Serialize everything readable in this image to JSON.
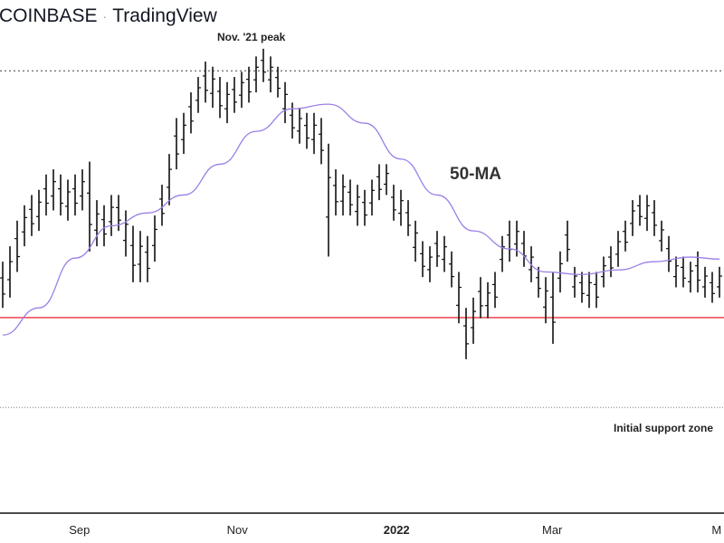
{
  "header": {
    "symbol": "COINBASE",
    "separator": "·",
    "source": "TradingView"
  },
  "annotations": {
    "peak": "Nov. '21 peak",
    "ma": "50-MA",
    "support": "Initial support zone"
  },
  "colors": {
    "bars": "#111111",
    "ma": "#9b7fe6",
    "support_line": "#f0505a",
    "dotted": "#444444"
  },
  "chart_data": {
    "type": "ohlc",
    "ylabel": "",
    "xlabel": "",
    "ylim": [
      0,
      100
    ],
    "levels": {
      "peak_level": 86.2,
      "support_line": 38.1,
      "lower_level": 20.6
    },
    "x_ticks": [
      {
        "label": "Sep",
        "at": 10.6,
        "bold": false
      },
      {
        "label": "Nov",
        "at": 32.4,
        "bold": false
      },
      {
        "label": "2022",
        "at": 54.4,
        "bold": true
      },
      {
        "label": "Mar",
        "at": 75.9,
        "bold": false
      },
      {
        "label": "M",
        "at": 98.6,
        "bold": false
      }
    ],
    "bars_high_low": [
      [
        49,
        40
      ],
      [
        52,
        42
      ],
      [
        57,
        47
      ],
      [
        60,
        52
      ],
      [
        62,
        54
      ],
      [
        63,
        55
      ],
      [
        66,
        58
      ],
      [
        67,
        59
      ],
      [
        66,
        58
      ],
      [
        65,
        57
      ],
      [
        66,
        58
      ],
      [
        67,
        59
      ],
      [
        68.5,
        51
      ],
      [
        61,
        52
      ],
      [
        60,
        52
      ],
      [
        62,
        54
      ],
      [
        62,
        55
      ],
      [
        59,
        50
      ],
      [
        56,
        45
      ],
      [
        55,
        45
      ],
      [
        54,
        45
      ],
      [
        58,
        49
      ],
      [
        64,
        56
      ],
      [
        70,
        60
      ],
      [
        77,
        67
      ],
      [
        78,
        70
      ],
      [
        82,
        74
      ],
      [
        85,
        78
      ],
      [
        88,
        80
      ],
      [
        87,
        79
      ],
      [
        85,
        77
      ],
      [
        84,
        76
      ],
      [
        85,
        78
      ],
      [
        86,
        79
      ],
      [
        87,
        80
      ],
      [
        89,
        82
      ],
      [
        90.5,
        84
      ],
      [
        89,
        82
      ],
      [
        87,
        81
      ],
      [
        84,
        76
      ],
      [
        80,
        73
      ],
      [
        79,
        72
      ],
      [
        78,
        71
      ],
      [
        78,
        70
      ],
      [
        77,
        68
      ],
      [
        72,
        50
      ],
      [
        67,
        58
      ],
      [
        66,
        58
      ],
      [
        65,
        58
      ],
      [
        64,
        56
      ],
      [
        63,
        56
      ],
      [
        65,
        58
      ],
      [
        68,
        61
      ],
      [
        68,
        62
      ],
      [
        64,
        57
      ],
      [
        63,
        56
      ],
      [
        61,
        54
      ],
      [
        57,
        49
      ],
      [
        53,
        46
      ],
      [
        52,
        45
      ],
      [
        55,
        48
      ],
      [
        54,
        47
      ],
      [
        51,
        44
      ],
      [
        47,
        37
      ],
      [
        40,
        30
      ],
      [
        42,
        33
      ],
      [
        46,
        38
      ],
      [
        45,
        38
      ],
      [
        47,
        40
      ],
      [
        54,
        47
      ],
      [
        57,
        49
      ],
      [
        57,
        50
      ],
      [
        55,
        48
      ],
      [
        52,
        45
      ],
      [
        48,
        42
      ],
      [
        46,
        37
      ],
      [
        47,
        33
      ],
      [
        51,
        43
      ],
      [
        57,
        49
      ],
      [
        48,
        42
      ],
      [
        47,
        41
      ],
      [
        47,
        40
      ],
      [
        47,
        40
      ],
      [
        50,
        44
      ],
      [
        52,
        46
      ],
      [
        55,
        48
      ],
      [
        57,
        51
      ],
      [
        61,
        54
      ],
      [
        62,
        56
      ],
      [
        62,
        55
      ],
      [
        61,
        54
      ],
      [
        57,
        51
      ],
      [
        54,
        47
      ],
      [
        50,
        44
      ],
      [
        50,
        44
      ],
      [
        49,
        43
      ],
      [
        51,
        43
      ],
      [
        48,
        42
      ],
      [
        47,
        41
      ],
      [
        48,
        42
      ]
    ],
    "ma50": {
      "name": "50-MA",
      "index": [
        0,
        5,
        10,
        15,
        20,
        25,
        30,
        35,
        40,
        45,
        50,
        55,
        60,
        65,
        70,
        75,
        80,
        85,
        90,
        95,
        99
      ],
      "values": [
        34.7,
        40,
        49.7,
        56,
        58.5,
        62,
        68,
        74.4,
        78.8,
        79.7,
        76,
        69,
        62,
        55,
        51.5,
        47,
        46.5,
        47.4,
        49,
        49.9,
        49.5
      ]
    }
  }
}
